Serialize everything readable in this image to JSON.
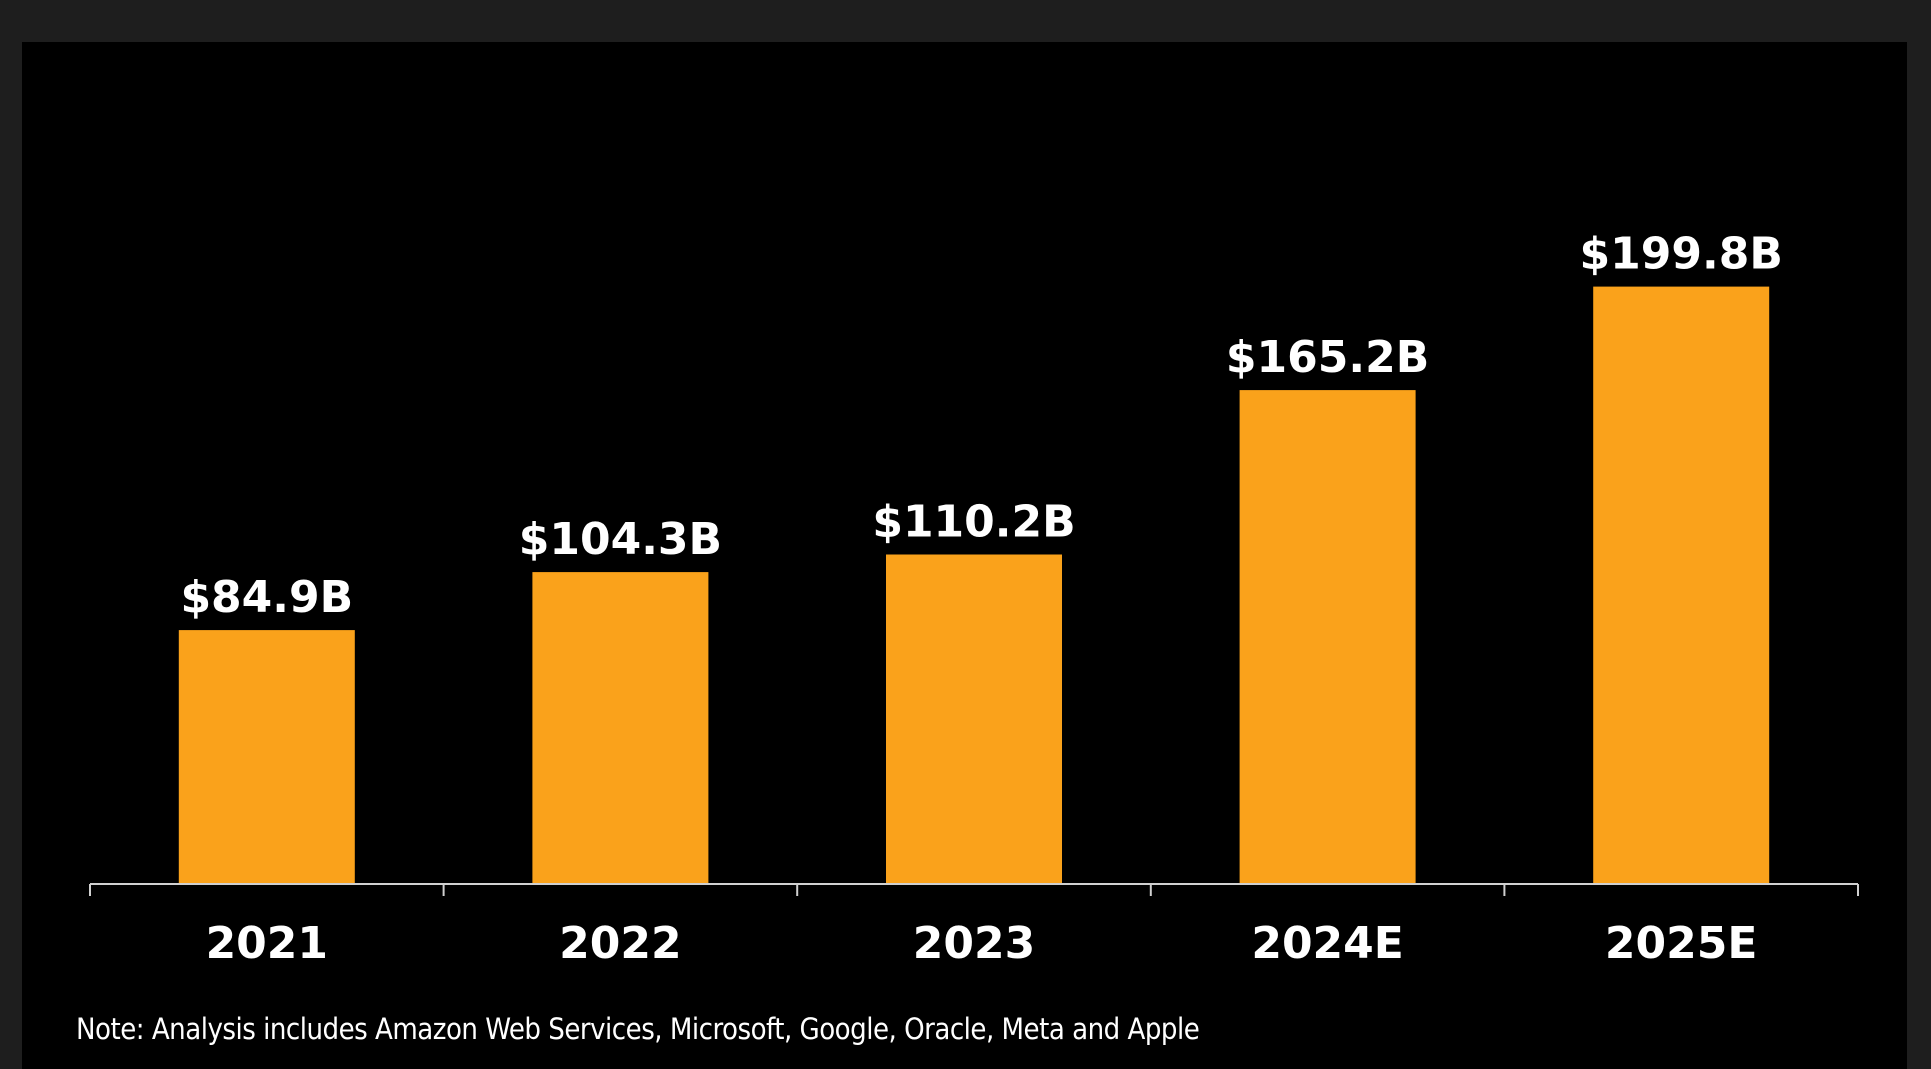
{
  "chart_data": {
    "type": "bar",
    "categories": [
      "2021",
      "2022",
      "2023",
      "2024E",
      "2025E"
    ],
    "values": [
      84.9,
      104.3,
      110.2,
      165.2,
      199.8
    ],
    "value_labels": [
      "$84.9B",
      "$104.3B",
      "$110.2B",
      "$165.2B",
      "$199.8B"
    ],
    "title": "",
    "xlabel": "",
    "ylabel": "",
    "ylim": [
      0,
      230
    ],
    "grid": false,
    "legend": "none",
    "bar_color": "#FAA21B",
    "background_color": "#000000"
  },
  "note": "Note: Analysis includes Amazon Web Services, Microsoft, Google, Oracle, Meta and Apple"
}
